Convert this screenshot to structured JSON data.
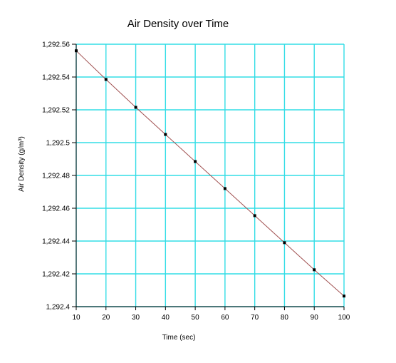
{
  "chart_data": {
    "type": "line",
    "title": "Air Density over Time",
    "xlabel": "Time (sec)",
    "ylabel": "Air Density (g/m³)",
    "xlim": [
      10,
      100
    ],
    "ylim": [
      1292.4,
      1292.56
    ],
    "x_ticks": [
      "10",
      "20",
      "30",
      "40",
      "50",
      "60",
      "70",
      "80",
      "90",
      "100"
    ],
    "y_ticks": [
      "1,292.4",
      "1,292.42",
      "1,292.44",
      "1,292.46",
      "1,292.48",
      "1,292.5",
      "1,292.52",
      "1,292.54",
      "1,292.56"
    ],
    "grid": true,
    "grid_color": "#33dde6",
    "line_color": "#a05050",
    "marker_color": "#000000",
    "series": [
      {
        "x": [
          10,
          20,
          30,
          40,
          50,
          60,
          70,
          80,
          90,
          100
        ],
        "y": [
          1292.556,
          1292.5385,
          1292.5215,
          1292.505,
          1292.4885,
          1292.472,
          1292.4555,
          1292.439,
          1292.4225,
          1292.4065
        ]
      }
    ]
  }
}
